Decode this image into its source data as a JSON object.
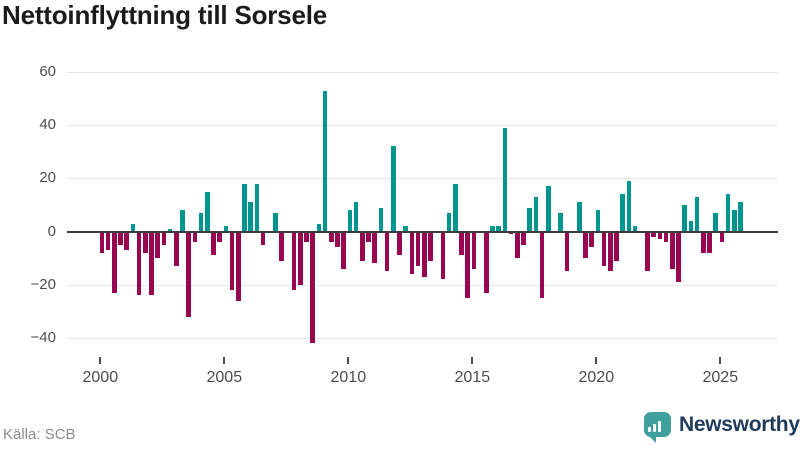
{
  "title": "Nettoinflyttning till Sorsele",
  "source": "Källa: SCB",
  "brand": {
    "name": "Newsworthy",
    "icon": "bar-chart-speech-bubble-icon"
  },
  "colors": {
    "positive_bar": "#00958e",
    "negative_bar": "#970650",
    "axis_line": "#3c3c3c",
    "gridline": "#e7e7e7",
    "tick_label": "#4d4d4d",
    "title_text": "#1b1b1b",
    "source_text": "#8d8d8d",
    "brand_icon": "#40a09e",
    "brand_text": "#1f3a5a",
    "background": "#ffffff"
  },
  "chart_data": {
    "type": "bar",
    "title": "Nettoinflyttning till Sorsele",
    "xlabel": "",
    "ylabel": "",
    "grid": true,
    "legend": false,
    "frequency": "quarterly",
    "x_ticks": [
      2000,
      2005,
      2010,
      2015,
      2020,
      2025
    ],
    "y_ticks": [
      60,
      40,
      20,
      0,
      -20,
      -40
    ],
    "y_tick_labels": [
      "60",
      "40",
      "20",
      "0",
      "−20",
      "−40"
    ],
    "ylim": [
      -50,
      66
    ],
    "series_by_year": [
      {
        "year": 2000,
        "values": [
          -8,
          -7,
          -23,
          -5
        ]
      },
      {
        "year": 2001,
        "values": [
          -7,
          3,
          -24,
          -8
        ]
      },
      {
        "year": 2002,
        "values": [
          -24,
          -10,
          -5,
          1
        ]
      },
      {
        "year": 2003,
        "values": [
          -13,
          8,
          -32,
          -4
        ]
      },
      {
        "year": 2004,
        "values": [
          7,
          15,
          -9,
          -4
        ]
      },
      {
        "year": 2005,
        "values": [
          2,
          -22,
          -26,
          18
        ]
      },
      {
        "year": 2006,
        "values": [
          11,
          18,
          -5,
          0
        ]
      },
      {
        "year": 2007,
        "values": [
          7,
          -11,
          0,
          -22
        ]
      },
      {
        "year": 2008,
        "values": [
          -20,
          -4,
          -42,
          3
        ]
      },
      {
        "year": 2009,
        "values": [
          53,
          -4,
          -6,
          -14
        ]
      },
      {
        "year": 2010,
        "values": [
          8,
          11,
          -11,
          -4
        ]
      },
      {
        "year": 2011,
        "values": [
          -12,
          9,
          -15,
          32
        ]
      },
      {
        "year": 2012,
        "values": [
          -9,
          2,
          -16,
          -13
        ]
      },
      {
        "year": 2013,
        "values": [
          -17,
          -11,
          0,
          -18
        ]
      },
      {
        "year": 2014,
        "values": [
          7,
          18,
          -9,
          -25
        ]
      },
      {
        "year": 2015,
        "values": [
          -14,
          0,
          -23,
          2
        ]
      },
      {
        "year": 2016,
        "values": [
          2,
          39,
          -1,
          -10
        ]
      },
      {
        "year": 2017,
        "values": [
          -5,
          9,
          13,
          -25
        ]
      },
      {
        "year": 2018,
        "values": [
          17,
          0,
          7,
          -15
        ]
      },
      {
        "year": 2019,
        "values": [
          0,
          11,
          -10,
          -6
        ]
      },
      {
        "year": 2020,
        "values": [
          8,
          -13,
          -15,
          -11
        ]
      },
      {
        "year": 2021,
        "values": [
          14,
          19,
          2,
          0
        ]
      },
      {
        "year": 2022,
        "values": [
          -15,
          -2,
          -3,
          -4
        ]
      },
      {
        "year": 2023,
        "values": [
          -14,
          -19,
          10,
          4
        ]
      },
      {
        "year": 2024,
        "values": [
          13,
          -8,
          -8,
          7
        ]
      },
      {
        "year": 2025,
        "values": [
          -4,
          14,
          8,
          11
        ]
      }
    ]
  }
}
